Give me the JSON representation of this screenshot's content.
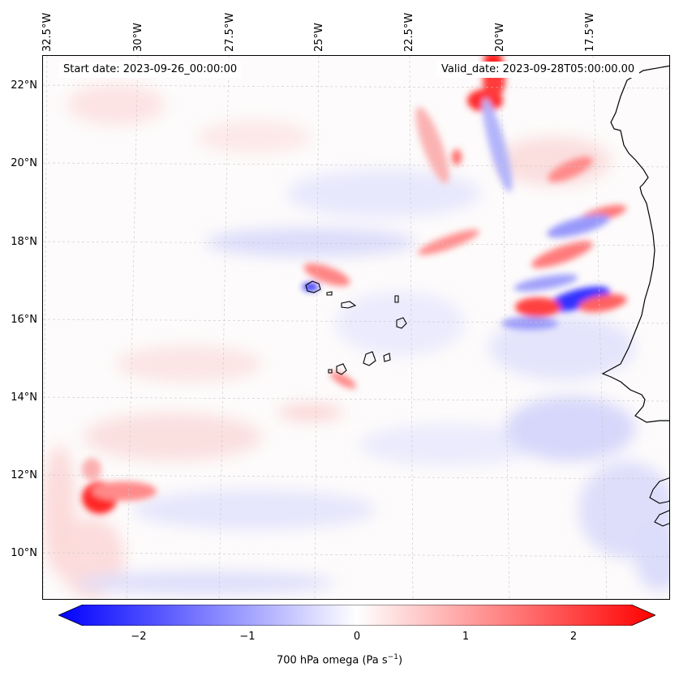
{
  "map": {
    "start_label": "Start date: 2023-09-26_00:00:00",
    "valid_label": "Valid_date: 2023-09-28T05:00:00.00",
    "lon_ticks": [
      "32.5°W",
      "30°W",
      "27.5°W",
      "25°W",
      "22.5°W",
      "20°W",
      "17.5°W"
    ],
    "lat_ticks": [
      "22°N",
      "20°N",
      "18°N",
      "16°N",
      "14°N",
      "12°N",
      "10°N"
    ],
    "variable": "700 hPa omega",
    "units": "Pa s",
    "units_exp": "−1"
  },
  "colorbar": {
    "ticks": [
      "−2",
      "−1",
      "0",
      "1",
      "2"
    ],
    "min": -2.6,
    "max": 2.6,
    "low_color": "#0000ff",
    "mid_color": "#ffffff",
    "high_color": "#ff0000"
  }
}
